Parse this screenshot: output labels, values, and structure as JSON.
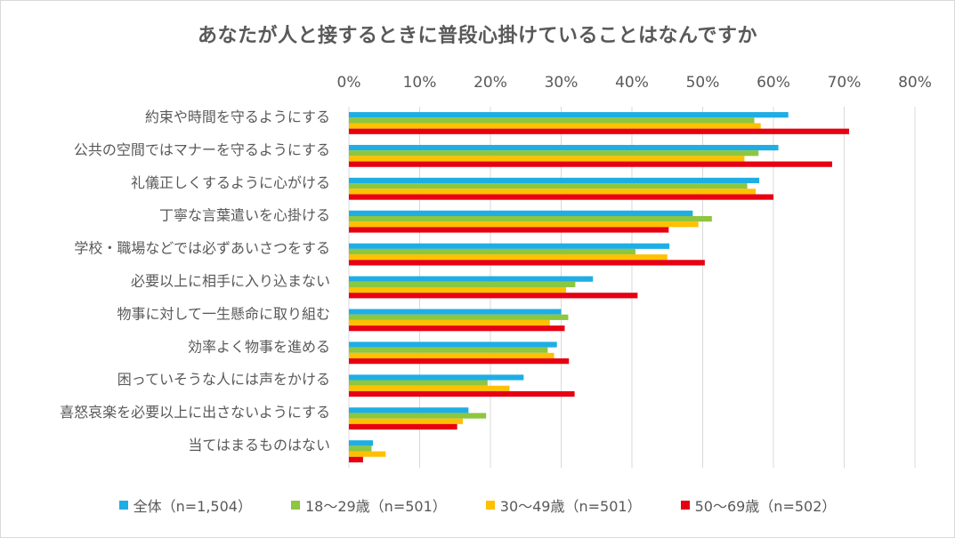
{
  "chart_data": {
    "type": "bar",
    "orientation": "horizontal",
    "title": "あなたが人と接するときに普段心掛けていることはなんですか",
    "xlim": [
      0,
      80
    ],
    "x_ticks": [
      "0%",
      "10%",
      "20%",
      "30%",
      "40%",
      "50%",
      "60%",
      "70%",
      "80%"
    ],
    "grid": "vertical",
    "legend_position": "bottom",
    "categories": [
      "約束や時間を守るようにする",
      "公共の空間ではマナーを守るようにする",
      "礼儀正しくするように心がける",
      "丁寧な言葉遣いを心掛ける",
      "学校・職場などでは必ずあいさつをする",
      "必要以上に相手に入り込まない",
      "物事に対して一生懸命に取り組む",
      "効率よく物事を進める",
      "困っていそうな人には声をかける",
      "喜怒哀楽を必要以上に出さないようにする",
      "当てはまるものはない"
    ],
    "series": [
      {
        "name": "全体（n=1,504）",
        "color": "#1eaee4",
        "values": [
          62.1,
          60.7,
          58.0,
          48.6,
          45.3,
          34.5,
          30.0,
          29.4,
          24.7,
          16.9,
          3.4
        ]
      },
      {
        "name": "18～29歳（n=501）",
        "color": "#8dc63f",
        "values": [
          57.3,
          57.9,
          56.3,
          51.3,
          40.5,
          32.0,
          31.0,
          28.1,
          19.6,
          19.4,
          3.2
        ]
      },
      {
        "name": "30～49歳（n=501）",
        "color": "#ffc000",
        "values": [
          58.2,
          55.9,
          57.5,
          49.4,
          45.0,
          30.7,
          28.4,
          29.0,
          22.7,
          16.1,
          5.2
        ]
      },
      {
        "name": "50～69歳（n=502）",
        "color": "#e60012",
        "values": [
          70.7,
          68.3,
          60.0,
          45.2,
          50.3,
          40.8,
          30.5,
          31.1,
          31.9,
          15.3,
          2.0
        ]
      }
    ]
  }
}
